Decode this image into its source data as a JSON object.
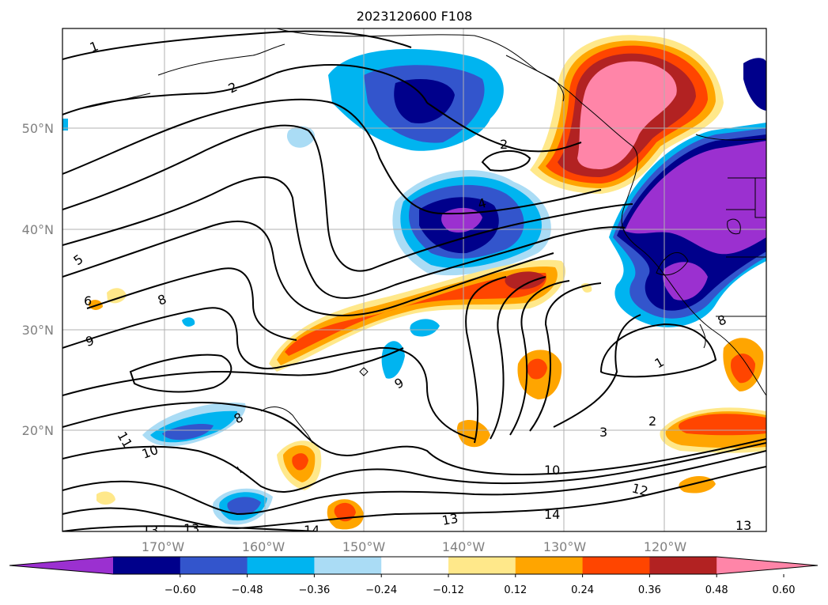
{
  "title": "2023120600 F108",
  "lat_labels": [
    "50°N",
    "40°N",
    "30°N",
    "20°N"
  ],
  "lon_labels": [
    "170°W",
    "160°W",
    "150°W",
    "140°W",
    "130°W",
    "120°W"
  ],
  "colorbar": {
    "ticks": [
      "−0.60",
      "−0.48",
      "−0.36",
      "−0.24",
      "−0.12",
      "0.12",
      "0.24",
      "0.36",
      "0.48",
      "0.60"
    ],
    "colors": [
      "#9b30d0",
      "#00008b",
      "#3355cc",
      "#00b4f0",
      "#aadcf5",
      "#ffffff",
      "#ffe88a",
      "#ffa500",
      "#ff4500",
      "#b22222",
      "#ff85a8"
    ]
  },
  "contour_labels": [
    "1",
    "2",
    "2",
    "4",
    "5",
    "6",
    "8",
    "8",
    "9",
    "9",
    "10",
    "11",
    "13",
    "13",
    "14",
    "13",
    "14",
    "10",
    "12",
    "13",
    "3",
    "2",
    "1",
    "8"
  ]
}
